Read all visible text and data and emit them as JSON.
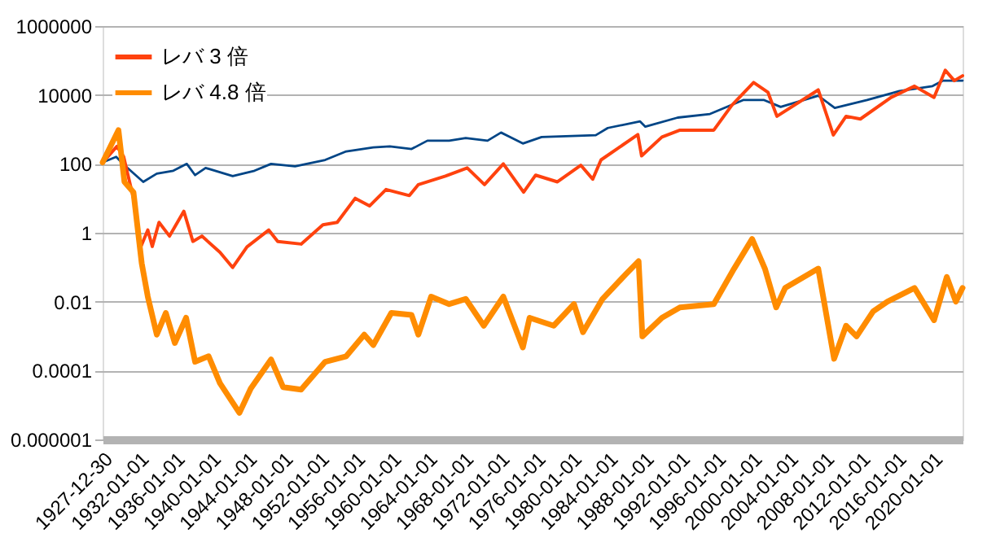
{
  "chart_data": {
    "type": "line",
    "log": "y",
    "grid": "y",
    "legend": "top left",
    "line_style": "solid",
    "marker": "none",
    "xlim": [
      "1927-12-30",
      "2023-05-01"
    ],
    "xticks": [
      "1927-12-30",
      "1932-01-01",
      "1936-01-01",
      "1940-01-01",
      "1944-01-01",
      "1948-01-01",
      "1952-01-01",
      "1956-01-01",
      "1960-01-01",
      "1964-01-01",
      "1968-01-01",
      "1972-01-01",
      "1976-01-01",
      "1980-01-01",
      "1984-01-01",
      "1988-01-01",
      "1992-01-01",
      "1996-01-01",
      "2000-01-01",
      "2004-01-01",
      "2008-01-01",
      "2012-01-01",
      "2016-01-01",
      "2020-01-01"
    ],
    "ylim": [
      1e-06,
      1000000
    ],
    "yticks": [
      {
        "value": 1e-06,
        "label": "0.000001"
      },
      0.0001,
      0.01,
      1,
      100,
      10000,
      1000000
    ],
    "series": [
      {
        "color": "#004586",
        "x": [
          "1928-01",
          "1929-07",
          "1930-06",
          "1932-07",
          "1934-01",
          "1935-11",
          "1937-05",
          "1938-04",
          "1939-06",
          "1942-06",
          "1944-11",
          "1946-09",
          "1949-05",
          "1952-09",
          "1955-01",
          "1958-01",
          "1959-11",
          "1962-04",
          "1964-01",
          "1966-06",
          "1968-04",
          "1970-09",
          "1972-03",
          "1973-01",
          "1974-08",
          "1976-09",
          "1982-09",
          "1984-01",
          "1987-08",
          "1988-03",
          "1991-10",
          "1995-05",
          "1999-01",
          "2001-05",
          "2003-03",
          "2007-05",
          "2009-03",
          "2012-10",
          "2016-05",
          "2020-01",
          "2021-03",
          "2023-05"
        ],
        "values": [
          110,
          160,
          91,
          30,
          52,
          63,
          100,
          47,
          76,
          44,
          63,
          100,
          85,
          130,
          230,
          300,
          320,
          270,
          470,
          470,
          560,
          470,
          810,
          630,
          390,
          600,
          680,
          1100,
          1700,
          1200,
          2200,
          2800,
          7100,
          7100,
          4500,
          9500,
          4200,
          7100,
          13000,
          18000,
          26000,
          26000
        ]
      },
      {
        "name": "レバ 3 倍",
        "color": "#ff420e",
        "x": [
          "1928-01",
          "1929-08",
          "1930-05",
          "1931-06",
          "1932-04",
          "1933-01",
          "1933-07",
          "1934-04",
          "1935-06",
          "1937-01",
          "1938-01",
          "1939-01",
          "1941-01",
          "1942-06",
          "1944-01",
          "1946-06",
          "1947-06",
          "1950-01",
          "1952-06",
          "1954-01",
          "1956-01",
          "1957-08",
          "1959-06",
          "1962-01",
          "1963-01",
          "1966-01",
          "1968-06",
          "1970-05",
          "1972-06",
          "1974-09",
          "1976-01",
          "1978-06",
          "1981-01",
          "1982-05",
          "1983-04",
          "1987-05",
          "1987-10",
          "1990-01",
          "1992-01",
          "1995-10",
          "1997-10",
          "2000-03",
          "2001-10",
          "2002-10",
          "2007-05",
          "2009-01",
          "2010-06",
          "2012-01",
          "2015-06",
          "2018-01",
          "2020-03",
          "2021-06",
          "2022-06",
          "2023-05"
        ],
        "values": [
          110,
          320,
          160,
          10,
          0.4,
          1.2,
          0.4,
          2.0,
          0.8,
          4.2,
          0.56,
          0.8,
          0.27,
          0.098,
          0.39,
          1.2,
          0.56,
          0.47,
          1.7,
          2.0,
          10,
          6.0,
          18,
          12,
          25,
          44,
          76,
          25,
          100,
          15,
          47,
          30,
          91,
          36,
          130,
          710,
          170,
          600,
          950,
          950,
          5000,
          23000,
          12000,
          2400,
          14000,
          690,
          2400,
          2000,
          8500,
          18000,
          8500,
          52000,
          26000,
          36000
        ]
      },
      {
        "name": "レバ 4.8 倍",
        "color": "#ff8c00",
        "x": [
          "1928-01",
          "1929-10",
          "1930-06",
          "1931-06",
          "1932-05",
          "1933-01",
          "1933-08",
          "1934-01",
          "1935-01",
          "1936-01",
          "1937-04",
          "1938-04",
          "1939-10",
          "1941-01",
          "1943-03",
          "1944-06",
          "1946-09",
          "1948-01",
          "1950-01",
          "1952-09",
          "1955-01",
          "1957-01",
          "1958-01",
          "1960-01",
          "1962-04",
          "1963-01",
          "1964-06",
          "1966-06",
          "1968-04",
          "1970-04",
          "1972-06",
          "1974-08",
          "1975-05",
          "1978-01",
          "1980-04",
          "1981-04",
          "1983-06",
          "1986-01",
          "1987-06",
          "1987-11",
          "1990-01",
          "1992-01",
          "1995-10",
          "1998-01",
          "2000-01",
          "2001-06",
          "2002-09",
          "2003-09",
          "2007-05",
          "2009-02",
          "2010-06",
          "2011-08",
          "2013-06",
          "2015-01",
          "2018-01",
          "2020-03",
          "2021-08",
          "2022-08",
          "2023-05"
        ],
        "values": [
          110,
          950,
          30,
          15,
          0.13,
          0.014,
          0.0032,
          0.0011,
          0.0047,
          0.00063,
          0.0034,
          0.00018,
          0.00026,
          4.3e-05,
          5.9e-06,
          3e-05,
          0.00021,
          3.3e-05,
          2.8e-05,
          0.00018,
          0.00026,
          0.0011,
          0.00055,
          0.0047,
          0.0041,
          0.0011,
          0.014,
          0.0085,
          0.012,
          0.002,
          0.014,
          0.00047,
          0.0034,
          0.002,
          0.0085,
          0.0013,
          0.012,
          0.063,
          0.15,
          0.00098,
          0.0034,
          0.0068,
          0.0085,
          0.091,
          0.66,
          0.091,
          0.0068,
          0.025,
          0.091,
          0.00022,
          0.002,
          0.00098,
          0.0052,
          0.01,
          0.025,
          0.0029,
          0.052,
          0.01,
          0.025
        ]
      }
    ]
  }
}
